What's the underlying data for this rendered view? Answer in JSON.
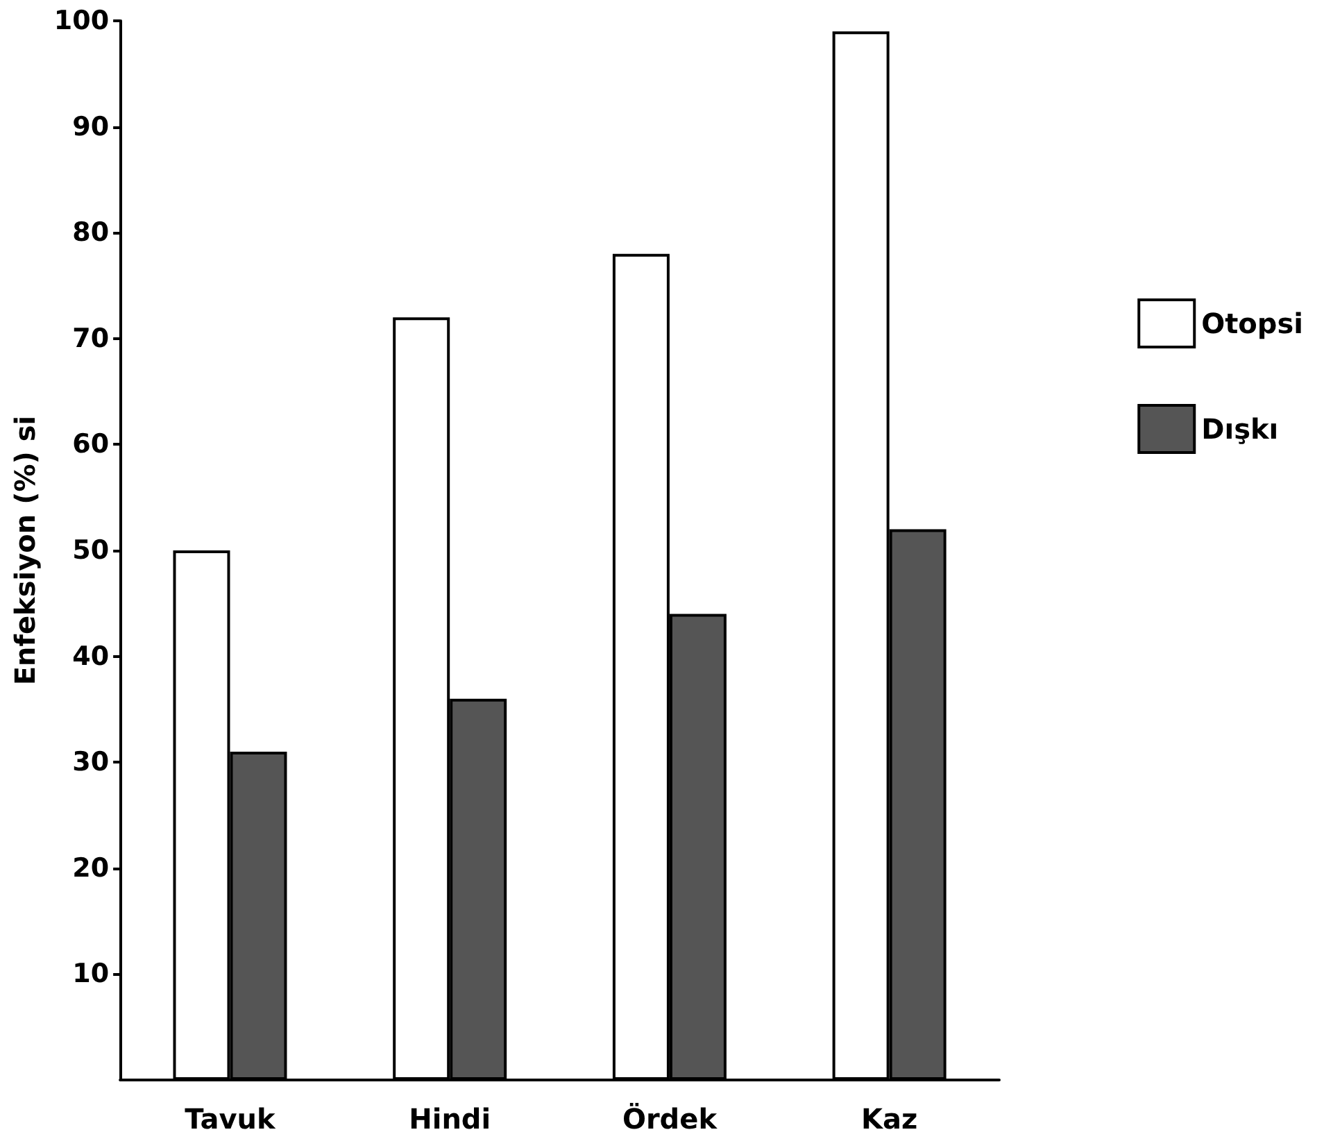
{
  "chart_data": {
    "type": "bar",
    "ylabel": "Enfeksiyon (%) si",
    "categories": [
      "Tavuk",
      "Hindi",
      "Ördek",
      "Kaz"
    ],
    "series": [
      {
        "name": "Otopsi",
        "color": "#ffffff",
        "values": [
          50,
          72,
          78,
          99
        ]
      },
      {
        "name": "Dışkı",
        "color": "#555555",
        "values": [
          31,
          36,
          44,
          52
        ]
      }
    ],
    "ylim": [
      0,
      100
    ],
    "yticks": [
      10,
      20,
      30,
      40,
      50,
      60,
      70,
      80,
      90,
      100
    ],
    "grid": false,
    "legend": "right"
  }
}
